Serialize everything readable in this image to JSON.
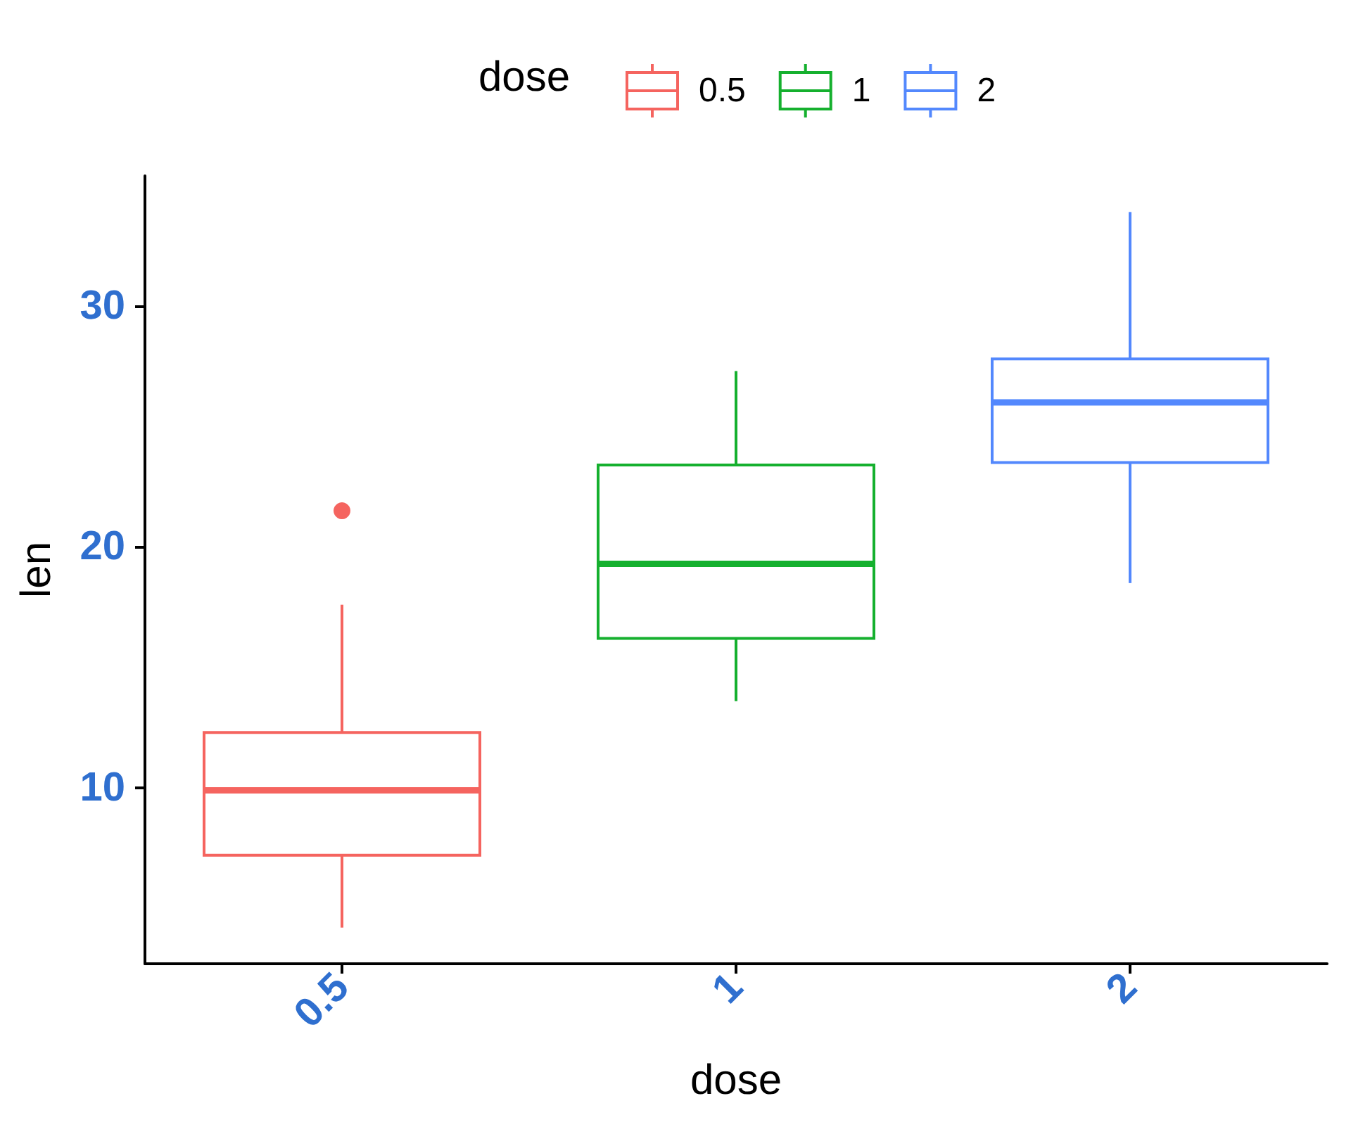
{
  "chart_data": {
    "type": "box",
    "categories": [
      "0.5",
      "1",
      "2"
    ],
    "xlabel": "dose",
    "ylabel": "len",
    "legend_title": "dose",
    "legend": "top",
    "ylim": [
      2.7,
      35.4
    ],
    "yticks": [
      10,
      20,
      30
    ],
    "series": [
      {
        "name": "0.5",
        "color": "#f5645f",
        "boxes": [
          {
            "low": 4.2,
            "q1": 7.2,
            "median": 9.9,
            "q3": 12.3,
            "high": 17.6,
            "outliers": [
              21.5
            ]
          },
          null,
          null
        ]
      },
      {
        "name": "1",
        "color": "#15b02e",
        "boxes": [
          null,
          {
            "low": 13.6,
            "q1": 16.2,
            "median": 19.3,
            "q3": 23.4,
            "high": 27.3
          },
          null
        ]
      },
      {
        "name": "2",
        "color": "#5388fd",
        "boxes": [
          null,
          null,
          {
            "low": 18.5,
            "q1": 23.5,
            "median": 26.0,
            "q3": 27.8,
            "high": 33.9
          }
        ]
      }
    ]
  }
}
